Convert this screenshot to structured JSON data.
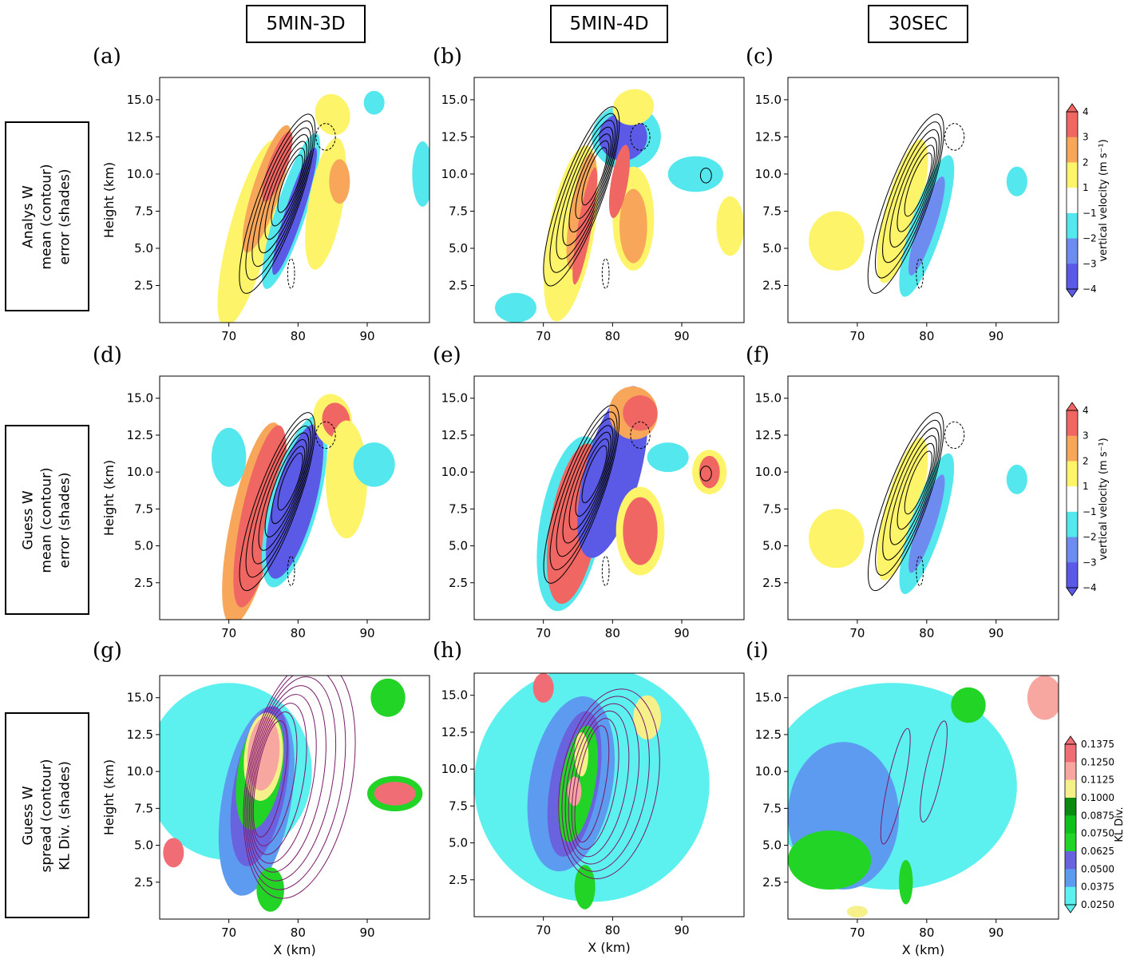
{
  "column_titles": [
    "5MIN-3D",
    "5MIN-4D",
    "30SEC"
  ],
  "row_titles": [
    "Analys W\nmean (contour)\nerror (shades)",
    "Guess W\nmean (contour)\nerror (shades)",
    "Guess W\nspread (contour)\nKL Div. (shades)"
  ],
  "panel_labels": [
    "(a)",
    "(b)",
    "(c)",
    "(d)",
    "(e)",
    "(f)",
    "(g)",
    "(h)",
    "(i)"
  ],
  "colors": {
    "neg4": "#5a5ae6",
    "neg3": "#6e8cef",
    "neg2": "#54e8ee",
    "pos2": "#fef46a",
    "pos3": "#f7a65a",
    "pos4": "#f06662",
    "kl1": "#5cf0ef",
    "kl2": "#5d9bf0",
    "kl3": "#6a63e0",
    "kl4": "#22d426",
    "kl5": "#10c01a",
    "kl6": "#0a8a10",
    "kl7": "#f6f08a",
    "kl8": "#f7a6a0",
    "kl9": "#f06d76",
    "spread_contour": "#7a1a6a"
  },
  "colorbars": [
    {
      "label": "vertical velocity (m s⁻¹)",
      "ticks": [
        "4",
        "3",
        "2",
        "1",
        "−1",
        "−2",
        "−3",
        "−4"
      ]
    },
    {
      "label": "vertical velocity (m s⁻¹)",
      "ticks": [
        "4",
        "3",
        "2",
        "1",
        "−1",
        "−2",
        "−3",
        "−4"
      ]
    },
    {
      "label": "KL Div.",
      "ticks": [
        "0.1375",
        "0.1250",
        "0.1125",
        "0.1000",
        "0.0875",
        "0.0750",
        "0.0625",
        "0.0500",
        "0.0375",
        "0.0250"
      ]
    }
  ],
  "chart_data": [
    {
      "panel": "(a)",
      "type": "heatmap",
      "experiment": "5MIN-3D",
      "field": "Analys W mean (contour), error (shades)",
      "xlabel": "",
      "ylabel": "Height (km)",
      "xlim": [
        60,
        99
      ],
      "ylim": [
        0,
        16.5
      ],
      "xticks": [
        70,
        80,
        90
      ],
      "yticks": [
        2.5,
        5.0,
        7.5,
        10.0,
        12.5,
        15.0
      ]
    },
    {
      "panel": "(b)",
      "type": "heatmap",
      "experiment": "5MIN-4D",
      "field": "Analys W mean (contour), error (shades)",
      "xlabel": "",
      "ylabel": "",
      "xlim": [
        60,
        99
      ],
      "ylim": [
        0,
        16.5
      ],
      "xticks": [
        70,
        80,
        90
      ],
      "yticks": [
        2.5,
        5.0,
        7.5,
        10.0,
        12.5,
        15.0
      ]
    },
    {
      "panel": "(c)",
      "type": "heatmap",
      "experiment": "30SEC",
      "field": "Analys W mean (contour), error (shades)",
      "xlabel": "",
      "ylabel": "",
      "xlim": [
        60,
        99
      ],
      "ylim": [
        0,
        16.5
      ],
      "xticks": [
        70,
        80,
        90
      ],
      "yticks": [
        2.5,
        5.0,
        7.5,
        10.0,
        12.5,
        15.0
      ]
    },
    {
      "panel": "(d)",
      "type": "heatmap",
      "experiment": "5MIN-3D",
      "field": "Guess W mean (contour), error (shades)",
      "xlabel": "",
      "ylabel": "Height (km)",
      "xlim": [
        60,
        99
      ],
      "ylim": [
        0,
        16.5
      ],
      "xticks": [
        70,
        80,
        90
      ],
      "yticks": [
        2.5,
        5.0,
        7.5,
        10.0,
        12.5,
        15.0
      ]
    },
    {
      "panel": "(e)",
      "type": "heatmap",
      "experiment": "5MIN-4D",
      "field": "Guess W mean (contour), error (shades)",
      "xlabel": "",
      "ylabel": "",
      "xlim": [
        60,
        99
      ],
      "ylim": [
        0,
        16.5
      ],
      "xticks": [
        70,
        80,
        90
      ],
      "yticks": [
        2.5,
        5.0,
        7.5,
        10.0,
        12.5,
        15.0
      ]
    },
    {
      "panel": "(f)",
      "type": "heatmap",
      "experiment": "30SEC",
      "field": "Guess W mean (contour), error (shades)",
      "xlabel": "",
      "ylabel": "",
      "xlim": [
        60,
        99
      ],
      "ylim": [
        0,
        16.5
      ],
      "xticks": [
        70,
        80,
        90
      ],
      "yticks": [
        2.5,
        5.0,
        7.5,
        10.0,
        12.5,
        15.0
      ]
    },
    {
      "panel": "(g)",
      "type": "heatmap",
      "experiment": "5MIN-3D",
      "field": "Guess W spread (contour), KL Div. (shades)",
      "xlabel": "X (km)",
      "ylabel": "Height (km)",
      "xlim": [
        60,
        99
      ],
      "ylim": [
        0,
        16.5
      ],
      "xticks": [
        70,
        80,
        90
      ],
      "yticks": [
        2.5,
        5.0,
        7.5,
        10.0,
        12.5,
        15.0
      ]
    },
    {
      "panel": "(h)",
      "type": "heatmap",
      "experiment": "5MIN-4D",
      "field": "Guess W spread (contour), KL Div. (shades)",
      "xlabel": "X (km)",
      "ylabel": "",
      "xlim": [
        60,
        99
      ],
      "ylim": [
        0,
        16.5
      ],
      "xticks": [
        70,
        80,
        90
      ],
      "yticks": [
        2.5,
        5.0,
        7.5,
        10.0,
        12.5,
        15.0
      ]
    },
    {
      "panel": "(i)",
      "type": "heatmap",
      "experiment": "30SEC",
      "field": "Guess W spread (contour), KL Div. (shades)",
      "xlabel": "X (km)",
      "ylabel": "",
      "xlim": [
        60,
        99
      ],
      "ylim": [
        0,
        16.5
      ],
      "xticks": [
        70,
        80,
        90
      ],
      "yticks": [
        2.5,
        5.0,
        7.5,
        10.0,
        12.5,
        15.0
      ]
    }
  ]
}
